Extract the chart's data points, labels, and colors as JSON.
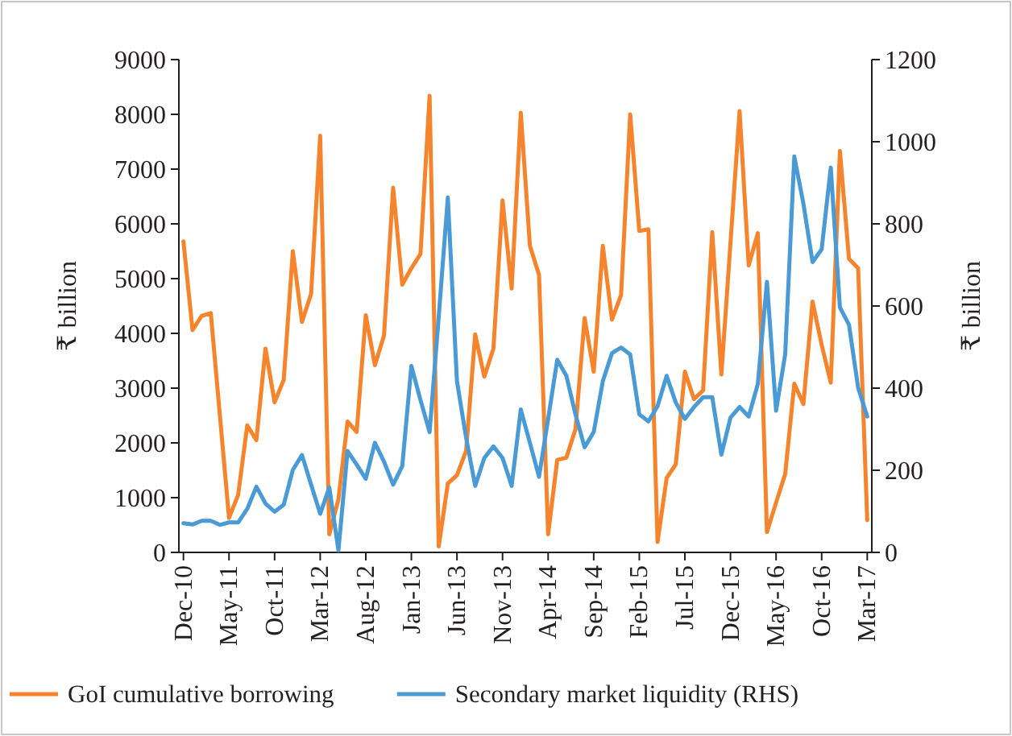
{
  "chart_data": {
    "type": "line",
    "ylabel": "₹ billion",
    "y2label": "₹ billion",
    "categories": [
      "Dec-10",
      null,
      null,
      null,
      null,
      "May-11",
      null,
      null,
      null,
      null,
      "Oct-11",
      null,
      null,
      null,
      null,
      "Mar-12",
      null,
      null,
      null,
      null,
      "Aug-12",
      null,
      null,
      null,
      null,
      "Jan-13",
      null,
      null,
      null,
      null,
      "Jun-13",
      null,
      null,
      null,
      null,
      "Nov-13",
      null,
      null,
      null,
      null,
      "Apr-14",
      null,
      null,
      null,
      null,
      "Sep-14",
      null,
      null,
      null,
      null,
      "Feb-15",
      null,
      null,
      null,
      null,
      "Jul-15",
      null,
      null,
      null,
      null,
      "Dec-15",
      null,
      null,
      null,
      null,
      "May-16",
      null,
      null,
      null,
      null,
      "Oct-16",
      null,
      null,
      null,
      null,
      "Mar-17"
    ],
    "series": [
      {
        "name": "GoI cumulative borrowing",
        "color": "#f5842c",
        "values": [
          5680,
          4060,
          4320,
          4370,
          2500,
          630,
          1050,
          2320,
          2050,
          3720,
          2740,
          3150,
          5500,
          4210,
          4720,
          7610,
          330,
          970,
          2390,
          2200,
          4330,
          3420,
          3960,
          6660,
          4890,
          5190,
          5450,
          8340,
          110,
          1260,
          1410,
          1850,
          3980,
          3210,
          3720,
          6430,
          4820,
          8030,
          5600,
          5070,
          330,
          1690,
          1730,
          2250,
          4280,
          3300,
          5600,
          4250,
          4700,
          8000,
          5870,
          5900,
          190,
          1360,
          1610,
          3300,
          2800,
          2960,
          5850,
          3250,
          5650,
          8060,
          5240,
          5830,
          370,
          910,
          1430,
          3080,
          2710,
          4580,
          3790,
          3100,
          7330,
          5360,
          5190,
          590
        ]
      },
      {
        "name": "Secondary market liquidity (RHS)",
        "color": "#4a9ad6",
        "axis": "y2",
        "values": [
          71,
          68,
          77,
          77,
          67,
          73,
          73,
          106,
          160,
          119,
          99,
          116,
          201,
          237,
          165,
          94,
          158,
          5,
          247,
          214,
          179,
          267,
          221,
          165,
          210,
          454,
          371,
          293,
          574,
          864,
          417,
          280,
          162,
          230,
          258,
          230,
          162,
          348,
          267,
          184,
          325,
          469,
          430,
          336,
          256,
          293,
          417,
          485,
          499,
          482,
          336,
          319,
          356,
          430,
          365,
          325,
          354,
          378,
          378,
          238,
          328,
          354,
          331,
          410,
          659,
          345,
          482,
          964,
          849,
          707,
          738,
          937,
          597,
          554,
          401,
          331
        ]
      }
    ],
    "ylim": [
      0,
      9000
    ],
    "yticks": [
      0,
      1000,
      2000,
      3000,
      4000,
      5000,
      6000,
      7000,
      8000,
      9000
    ],
    "y2lim": [
      0,
      1200
    ],
    "y2ticks": [
      0,
      200,
      400,
      600,
      800,
      1000,
      1200
    ],
    "grid": false,
    "legend": "bottom",
    "line_style": "solid",
    "marker": "none"
  }
}
